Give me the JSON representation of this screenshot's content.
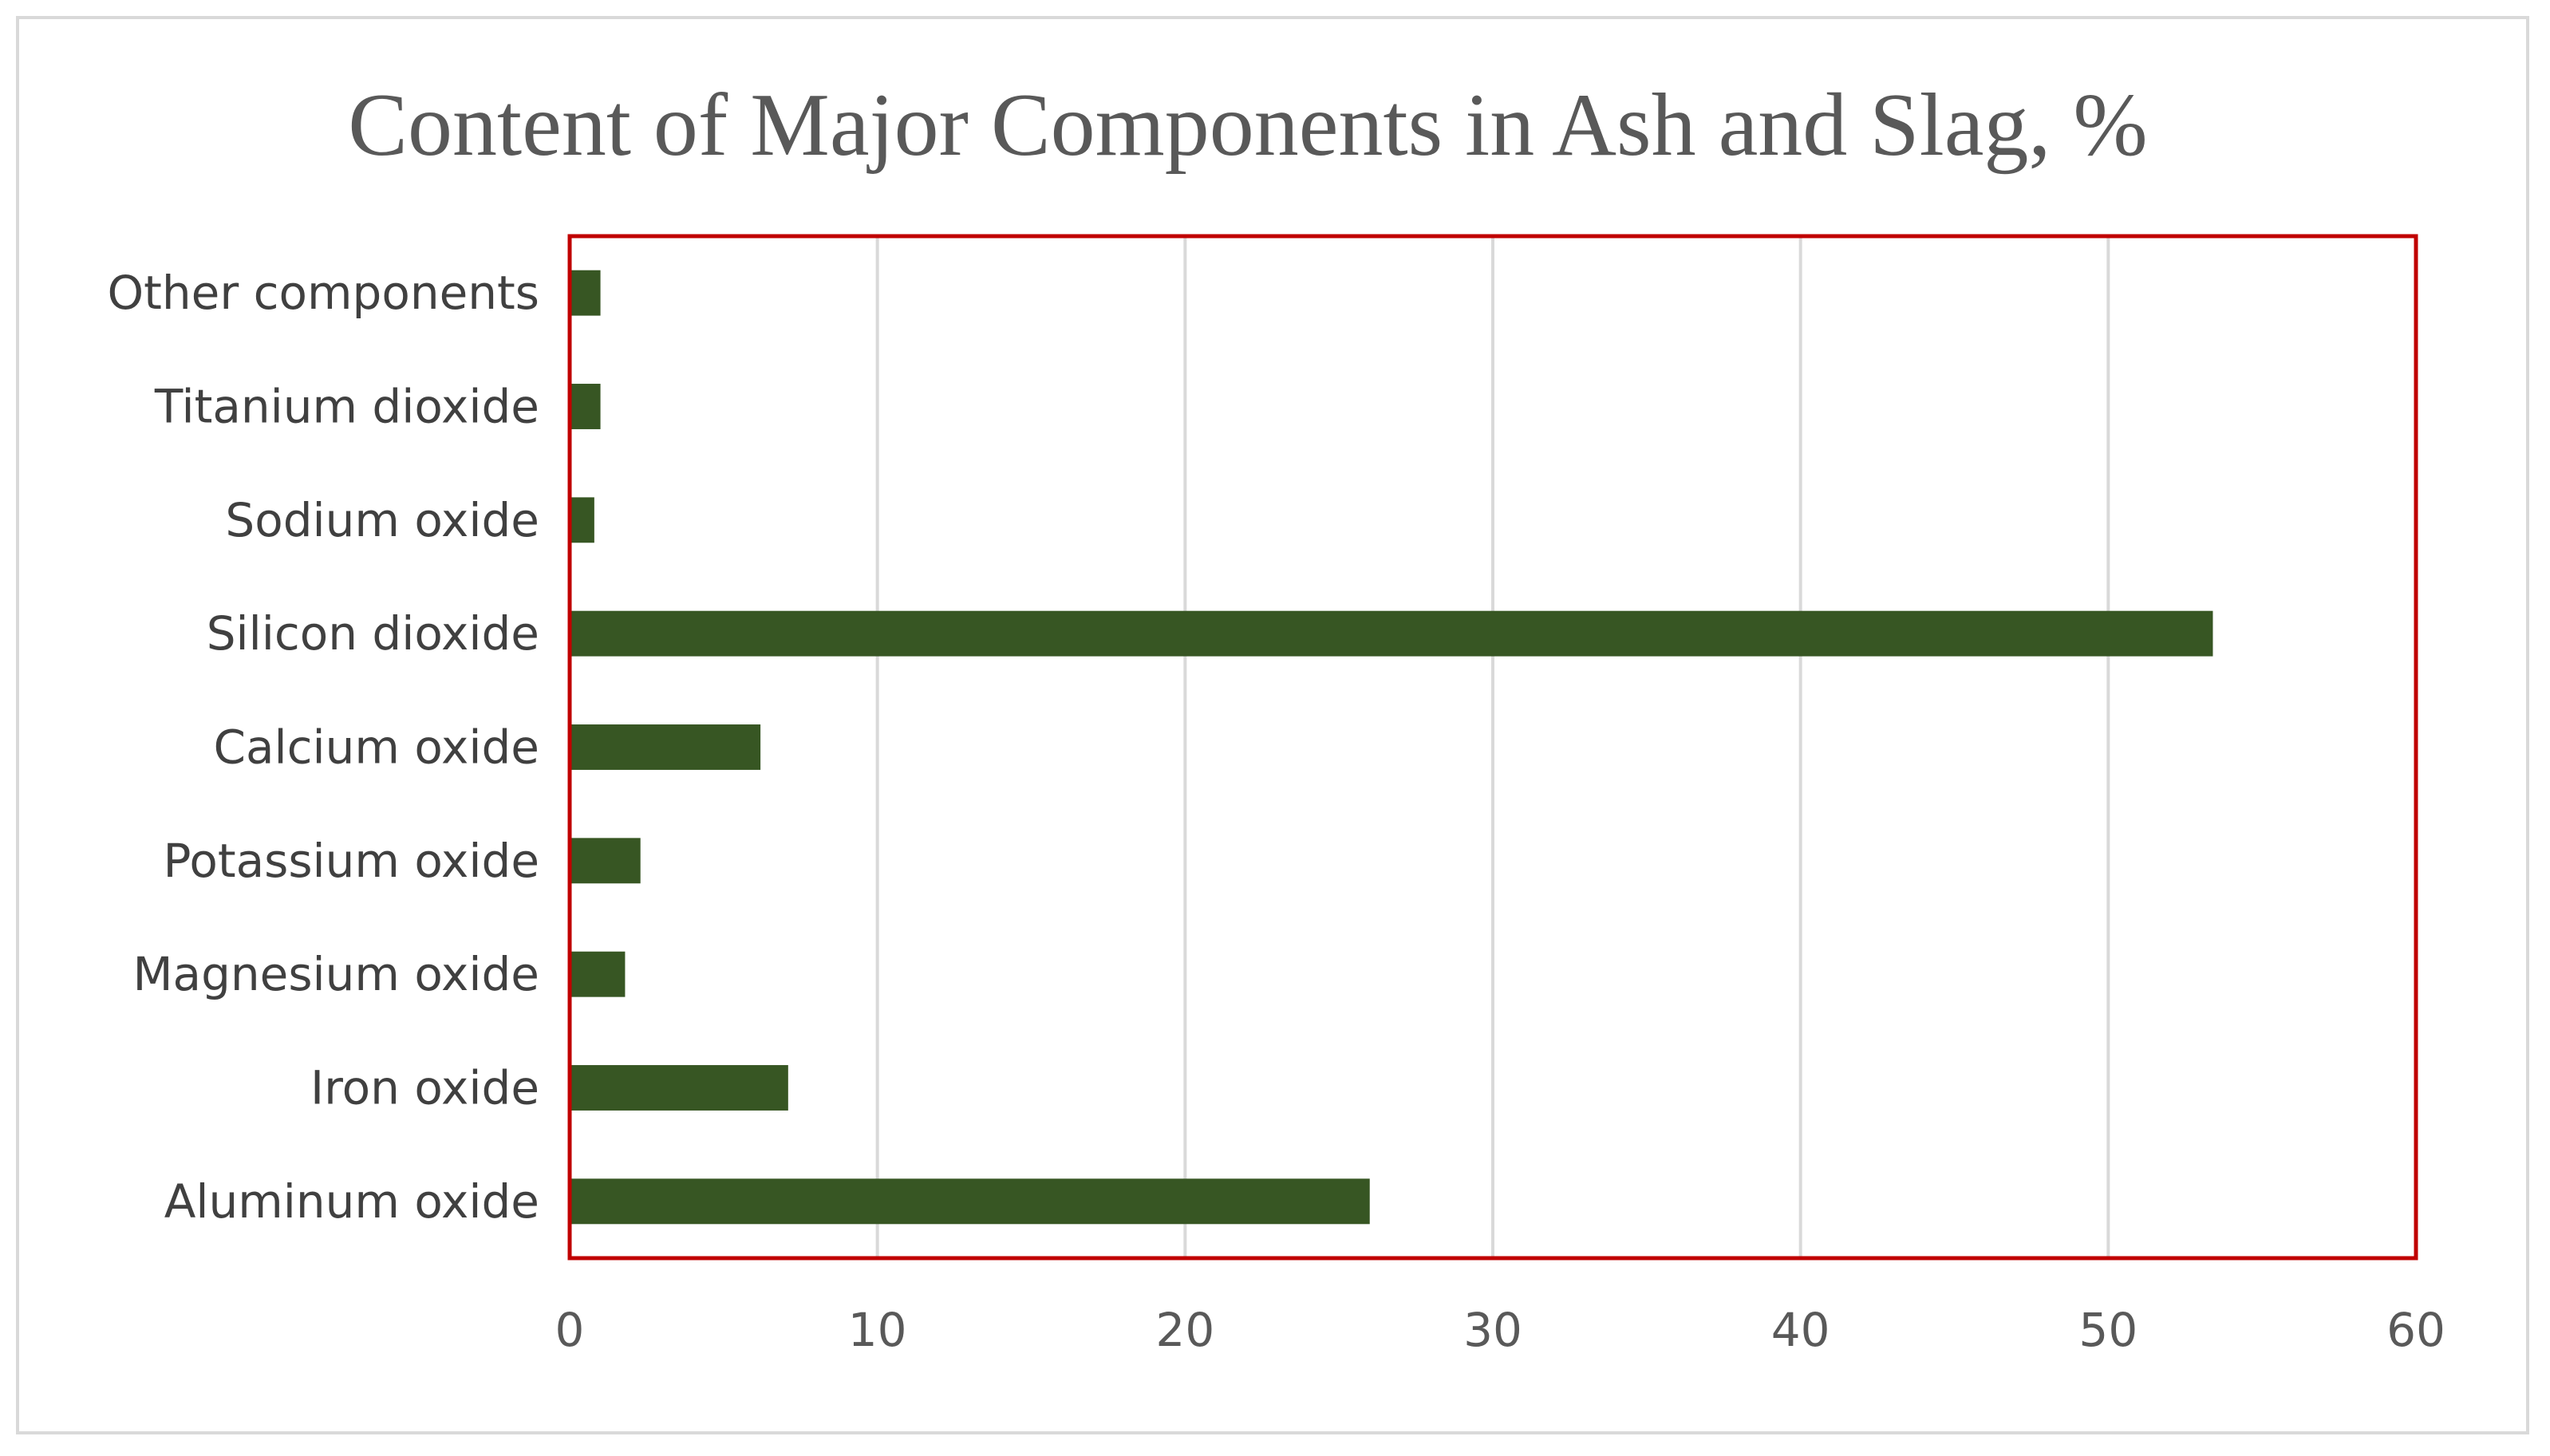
{
  "chart_data": {
    "type": "bar",
    "orientation": "horizontal",
    "title": "Content of Major Components in Ash and Slag, %",
    "xlabel": "",
    "ylabel": "",
    "categories": [
      "Aluminum oxide",
      "Iron oxide",
      "Magnesium oxide",
      "Potassium oxide",
      "Calcium oxide",
      "Silicon dioxide",
      "Sodium oxide",
      "Titanium dioxide",
      "Other components"
    ],
    "values": [
      26,
      7.1,
      1.8,
      2.3,
      6.2,
      53.4,
      0.8,
      1.0,
      1.0
    ],
    "xlim": [
      0,
      60
    ],
    "xticks": [
      "0",
      "10",
      "20",
      "30",
      "40",
      "50",
      "60"
    ],
    "grid": "vertical",
    "legend": "none",
    "colors": {
      "bar": "#375623",
      "plot_border": "#c00000",
      "gridline": "#d9d9d9",
      "frame_border": "#d9d9d9"
    }
  }
}
